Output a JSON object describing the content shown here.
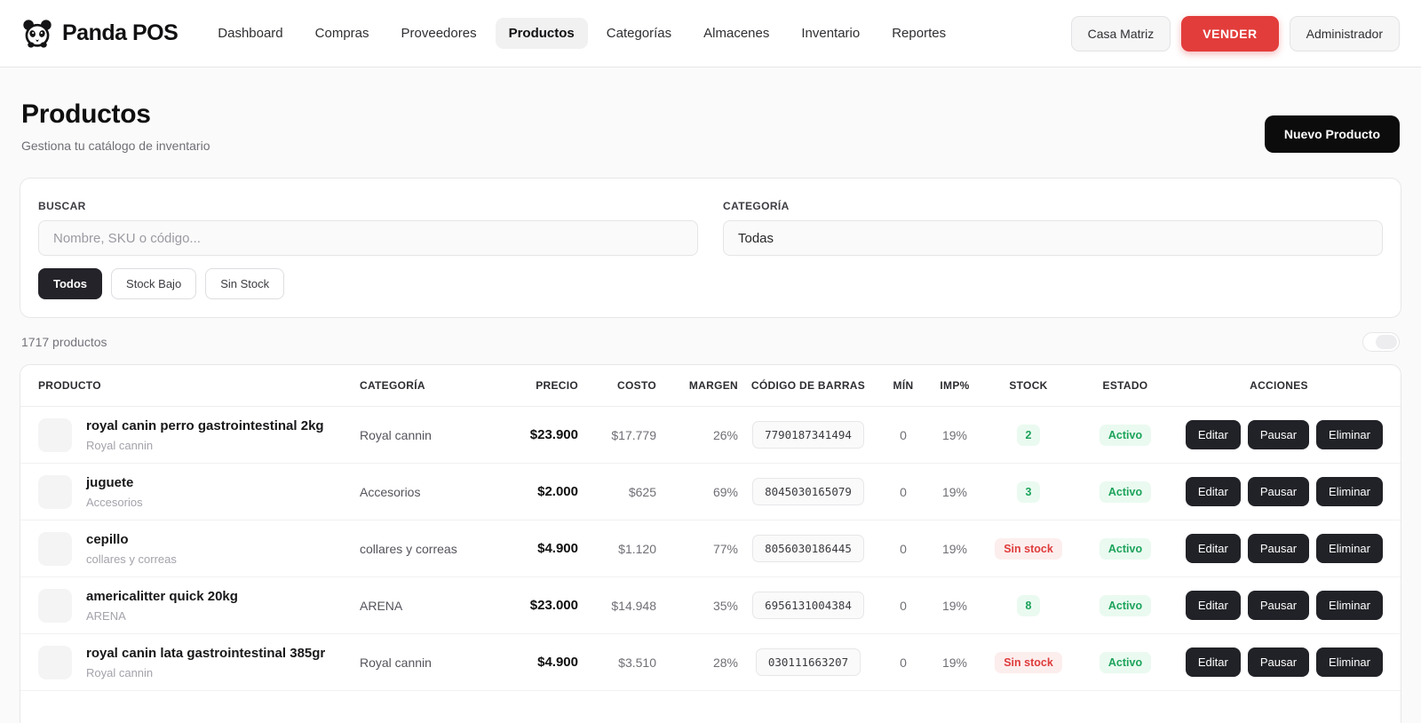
{
  "brand": {
    "name": "Panda POS"
  },
  "nav": {
    "items": [
      {
        "label": "Dashboard",
        "active": false
      },
      {
        "label": "Compras",
        "active": false
      },
      {
        "label": "Proveedores",
        "active": false
      },
      {
        "label": "Productos",
        "active": true
      },
      {
        "label": "Categorías",
        "active": false
      },
      {
        "label": "Almacenes",
        "active": false
      },
      {
        "label": "Inventario",
        "active": false
      },
      {
        "label": "Reportes",
        "active": false
      }
    ],
    "branch_button": "Casa Matriz",
    "sell_button": "VENDER",
    "user_button": "Administrador"
  },
  "header": {
    "title": "Productos",
    "subtitle": "Gestiona tu catálogo de inventario",
    "new_product_button": "Nuevo Producto"
  },
  "filters": {
    "search_label": "BUSCAR",
    "search_placeholder": "Nombre, SKU o código...",
    "category_label": "CATEGORÍA",
    "category_value": "Todas",
    "chips": [
      {
        "label": "Todos",
        "active": true
      },
      {
        "label": "Stock Bajo",
        "active": false
      },
      {
        "label": "Sin Stock",
        "active": false
      }
    ]
  },
  "results": {
    "count_text": "1717 productos"
  },
  "table": {
    "columns": [
      "PRODUCTO",
      "CATEGORÍA",
      "PRECIO",
      "COSTO",
      "MARGEN",
      "CÓDIGO DE BARRAS",
      "MÍN",
      "IMP%",
      "STOCK",
      "ESTADO",
      "ACCIONES"
    ],
    "action_labels": [
      "Editar",
      "Pausar",
      "Eliminar"
    ],
    "rows": [
      {
        "name": "royal canin perro gastrointestinal 2kg",
        "sub": "Royal cannin",
        "category": "Royal cannin",
        "price": "$23.900",
        "cost": "$17.779",
        "margin": "26%",
        "barcode": "7790187341494",
        "min": "0",
        "tax": "19%",
        "stock": "2",
        "stock_state": "ok",
        "status": "Activo"
      },
      {
        "name": "juguete",
        "sub": "Accesorios",
        "category": "Accesorios",
        "price": "$2.000",
        "cost": "$625",
        "margin": "69%",
        "barcode": "8045030165079",
        "min": "0",
        "tax": "19%",
        "stock": "3",
        "stock_state": "ok",
        "status": "Activo"
      },
      {
        "name": "cepillo",
        "sub": "collares y correas",
        "category": "collares y correas",
        "price": "$4.900",
        "cost": "$1.120",
        "margin": "77%",
        "barcode": "8056030186445",
        "min": "0",
        "tax": "19%",
        "stock": "Sin stock",
        "stock_state": "out",
        "status": "Activo"
      },
      {
        "name": "americalitter quick 20kg",
        "sub": "ARENA",
        "category": "ARENA",
        "price": "$23.000",
        "cost": "$14.948",
        "margin": "35%",
        "barcode": "6956131004384",
        "min": "0",
        "tax": "19%",
        "stock": "8",
        "stock_state": "ok",
        "status": "Activo"
      },
      {
        "name": "royal canin lata gastrointestinal 385gr",
        "sub": "Royal cannin",
        "category": "Royal cannin",
        "price": "$4.900",
        "cost": "$3.510",
        "margin": "28%",
        "barcode": "030111663207",
        "min": "0",
        "tax": "19%",
        "stock": "Sin stock",
        "stock_state": "out",
        "status": "Activo"
      }
    ]
  },
  "colors": {
    "accent_red": "#e23d3b",
    "dark_button": "#212227",
    "black_button": "#0c0c0d",
    "status_green": "#1da35b",
    "status_green_bg": "#eafaf0",
    "status_red": "#df3b3b",
    "status_red_bg": "#fdeeee"
  }
}
